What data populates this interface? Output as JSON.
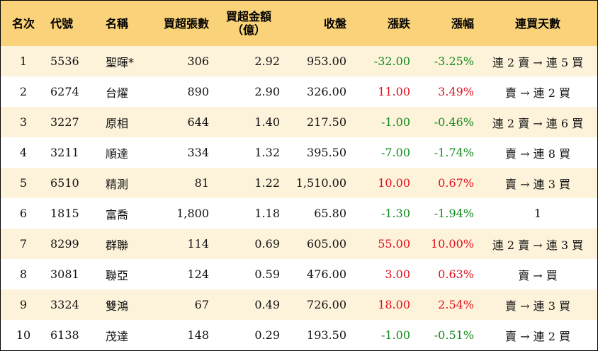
{
  "headers": {
    "rank": "名次",
    "code": "代號",
    "name": "名稱",
    "net_lots": "買超張數",
    "net_amount_l1": "買超金額",
    "net_amount_l2": "（億）",
    "close": "收盤",
    "change": "漲跌",
    "pct": "漲幅",
    "streak": "連買天數"
  },
  "rows": [
    {
      "rank": "1",
      "code": "5536",
      "name": "聖暉*",
      "lots": "306",
      "amount": "2.92",
      "close": "953.00",
      "change": "-32.00",
      "pct": "-3.25%",
      "dir": "down",
      "streak": "連 2 賣 → 連 5 買"
    },
    {
      "rank": "2",
      "code": "6274",
      "name": "台燿",
      "lots": "890",
      "amount": "2.90",
      "close": "326.00",
      "change": "11.00",
      "pct": "3.49%",
      "dir": "up",
      "streak": "賣 → 連 2 買"
    },
    {
      "rank": "3",
      "code": "3227",
      "name": "原相",
      "lots": "644",
      "amount": "1.40",
      "close": "217.50",
      "change": "-1.00",
      "pct": "-0.46%",
      "dir": "down",
      "streak": "連 2 賣 → 連 6 買"
    },
    {
      "rank": "4",
      "code": "3211",
      "name": "順達",
      "lots": "334",
      "amount": "1.32",
      "close": "395.50",
      "change": "-7.00",
      "pct": "-1.74%",
      "dir": "down",
      "streak": "賣 → 連 8 買"
    },
    {
      "rank": "5",
      "code": "6510",
      "name": "精測",
      "lots": "81",
      "amount": "1.22",
      "close": "1,510.00",
      "change": "10.00",
      "pct": "0.67%",
      "dir": "up",
      "streak": "賣 → 連 3 買"
    },
    {
      "rank": "6",
      "code": "1815",
      "name": "富喬",
      "lots": "1,800",
      "amount": "1.18",
      "close": "65.80",
      "change": "-1.30",
      "pct": "-1.94%",
      "dir": "down",
      "streak": "1"
    },
    {
      "rank": "7",
      "code": "8299",
      "name": "群聯",
      "lots": "114",
      "amount": "0.69",
      "close": "605.00",
      "change": "55.00",
      "pct": "10.00%",
      "dir": "up",
      "streak": "連 2 賣 → 連 3 買"
    },
    {
      "rank": "8",
      "code": "3081",
      "name": "聯亞",
      "lots": "124",
      "amount": "0.59",
      "close": "476.00",
      "change": "3.00",
      "pct": "0.63%",
      "dir": "up",
      "streak": "賣 → 買"
    },
    {
      "rank": "9",
      "code": "3324",
      "name": "雙鴻",
      "lots": "67",
      "amount": "0.49",
      "close": "726.00",
      "change": "18.00",
      "pct": "2.54%",
      "dir": "up",
      "streak": "賣 → 連 3 買"
    },
    {
      "rank": "10",
      "code": "6138",
      "name": "茂達",
      "lots": "148",
      "amount": "0.29",
      "close": "193.50",
      "change": "-1.00",
      "pct": "-0.51%",
      "dir": "down",
      "streak": "賣 → 連 2 買"
    }
  ],
  "colors": {
    "header_bg": "#fad279",
    "row_alt_bg": "#fdf3da",
    "up": "#e0101e",
    "down": "#138a1e"
  }
}
